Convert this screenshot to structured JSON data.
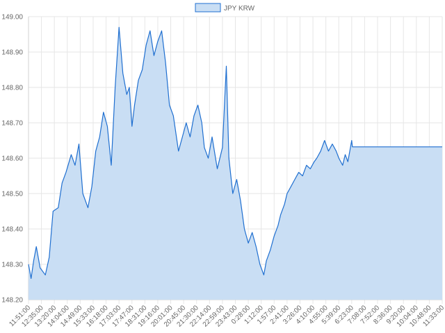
{
  "chart_data": {
    "type": "area",
    "title": "",
    "xlabel": "",
    "ylabel": "",
    "legend": {
      "position": "top",
      "entries": [
        "JPY KRW"
      ]
    },
    "grid": true,
    "ylim": [
      148.2,
      149.0
    ],
    "y_ticks": [
      "148.20",
      "148.30",
      "148.40",
      "148.50",
      "148.60",
      "148.70",
      "148.80",
      "148.90",
      "149.00"
    ],
    "x_ticks": [
      "11:51:00",
      "12:35:00",
      "13:20:00",
      "14:04:00",
      "14:49:00",
      "15:33:00",
      "16:18:00",
      "17:03:00",
      "17:47:00",
      "18:31:00",
      "19:16:00",
      "20:01:00",
      "20:45:00",
      "21:30:00",
      "22:14:00",
      "22:59:00",
      "23:43:00",
      "0:28:00",
      "1:12:00",
      "1:57:00",
      "2:41:00",
      "3:26:00",
      "4:10:00",
      "4:55:00",
      "5:39:00",
      "6:23:00",
      "7:08:00",
      "7:52:00",
      "8:36:00",
      "9:20:00",
      "10:04:00",
      "10:48:00",
      "11:33:00"
    ],
    "series": [
      {
        "name": "JPY KRW",
        "line_color": "#1f6fd0",
        "fill_color": "#c9def4",
        "x": [
          0,
          0.2,
          0.4,
          0.6,
          0.9,
          1.3,
          1.6,
          1.9,
          2.3,
          2.6,
          2.9,
          3.3,
          3.6,
          3.9,
          4.2,
          4.6,
          4.9,
          5.2,
          5.5,
          5.8,
          6.1,
          6.4,
          6.7,
          7.0,
          7.3,
          7.6,
          7.8,
          8.0,
          8.2,
          8.5,
          8.8,
          9.1,
          9.4,
          9.7,
          10.0,
          10.3,
          10.6,
          10.9,
          11.2,
          11.6,
          11.9,
          12.2,
          12.5,
          12.8,
          13.1,
          13.4,
          13.6,
          13.9,
          14.2,
          14.6,
          15.0,
          15.3,
          15.5,
          15.8,
          16.1,
          16.4,
          16.7,
          17.0,
          17.3,
          17.6,
          17.9,
          18.2,
          18.4,
          18.7,
          19.0,
          19.3,
          19.5,
          19.8,
          20.0,
          20.3,
          20.6,
          20.9,
          21.2,
          21.5,
          21.8,
          22.1,
          22.3,
          22.6,
          22.9,
          23.2,
          23.5,
          23.8,
          24.0,
          24.3,
          24.5,
          24.7,
          24.9,
          25.0,
          25.05,
          32
        ],
        "values": [
          148.3,
          148.26,
          148.31,
          148.35,
          148.29,
          148.27,
          148.32,
          148.45,
          148.46,
          148.53,
          148.56,
          148.61,
          148.58,
          148.64,
          148.5,
          148.46,
          148.52,
          148.62,
          148.66,
          148.73,
          148.69,
          148.58,
          148.8,
          148.97,
          148.84,
          148.78,
          148.8,
          148.69,
          148.75,
          148.82,
          148.85,
          148.92,
          148.96,
          148.89,
          148.93,
          148.96,
          148.87,
          148.75,
          148.72,
          148.62,
          148.66,
          148.7,
          148.66,
          148.72,
          148.75,
          148.7,
          148.63,
          148.6,
          148.66,
          148.57,
          148.63,
          148.86,
          148.6,
          148.5,
          148.54,
          148.48,
          148.4,
          148.36,
          148.39,
          148.35,
          148.3,
          148.27,
          148.31,
          148.34,
          148.38,
          148.41,
          148.44,
          148.47,
          148.5,
          148.52,
          148.54,
          148.56,
          148.55,
          148.58,
          148.57,
          148.59,
          148.6,
          148.62,
          148.65,
          148.62,
          148.64,
          148.62,
          148.6,
          148.58,
          148.61,
          148.59,
          148.63,
          148.65,
          148.632,
          148.632
        ]
      }
    ]
  }
}
